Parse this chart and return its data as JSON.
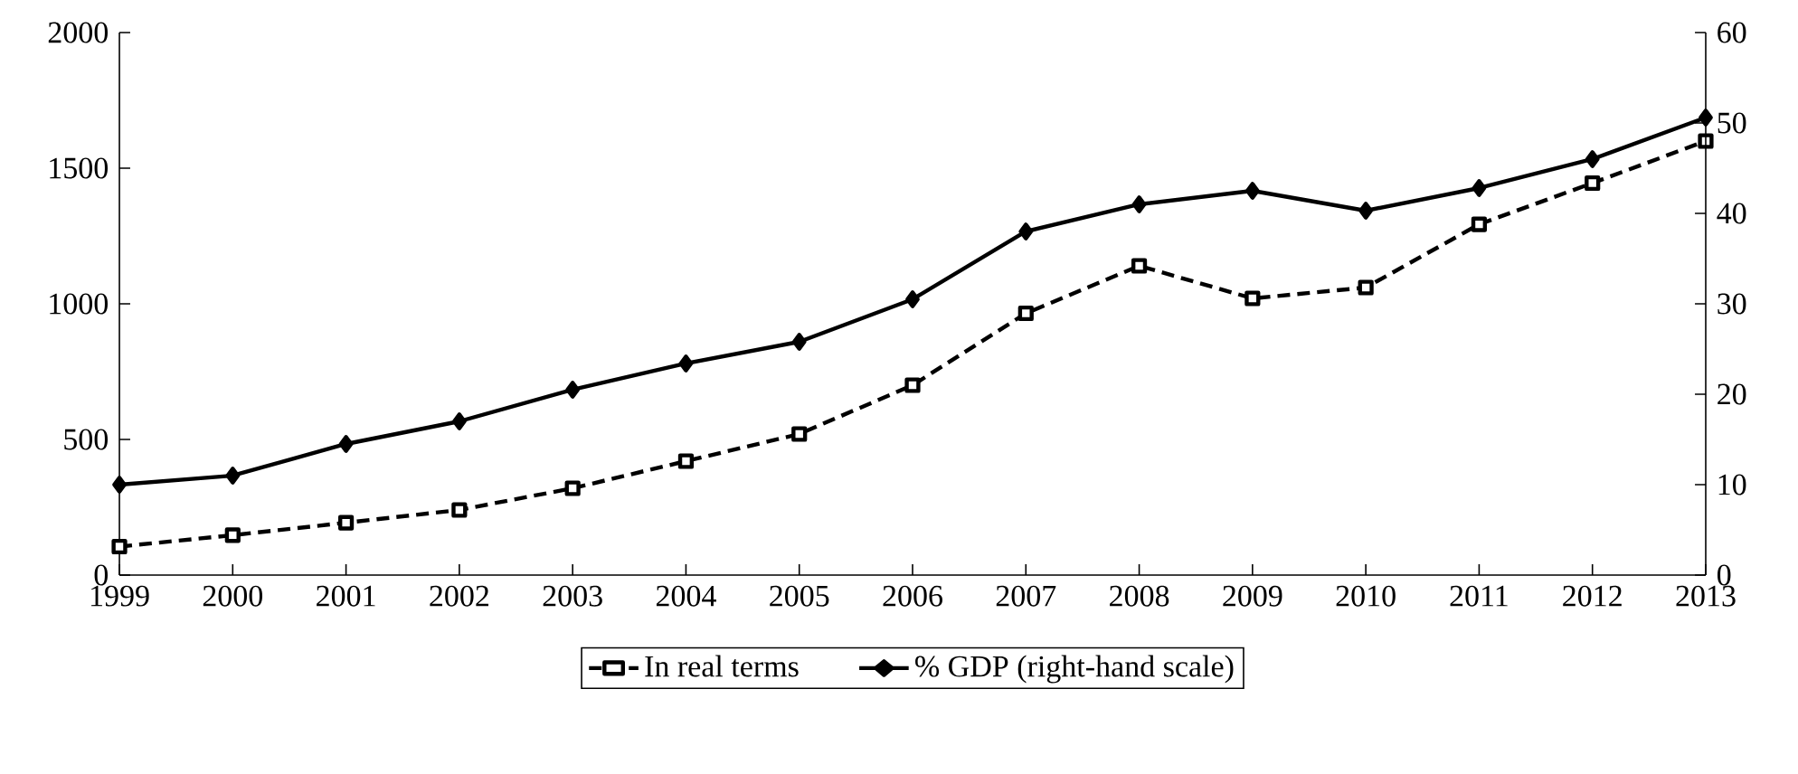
{
  "chart_data": {
    "type": "line",
    "x": [
      1999,
      2000,
      2001,
      2002,
      2003,
      2004,
      2005,
      2006,
      2007,
      2008,
      2009,
      2010,
      2011,
      2012,
      2013
    ],
    "series": [
      {
        "name": "In real terms",
        "color": "#000000",
        "marker": "square",
        "line_style": "dashed",
        "values": [
          105,
          147,
          193,
          240,
          320,
          420,
          520,
          700,
          965,
          1140,
          1020,
          1060,
          1293,
          1445,
          1600
        ]
      },
      {
        "name": "% GDP (right-hand scale)",
        "color": "#000000",
        "marker": "diamond",
        "line_style": "solid",
        "axis": "y2",
        "values": [
          10,
          11,
          14.5,
          17,
          20.5,
          23.4,
          25.8,
          30.5,
          38,
          41,
          42.5,
          40.3,
          42.8,
          46,
          50.6
        ]
      }
    ],
    "xlim": [
      1999,
      2013
    ],
    "xticks": [
      1999,
      2000,
      2001,
      2002,
      2003,
      2004,
      2005,
      2006,
      2007,
      2008,
      2009,
      2010,
      2011,
      2012,
      2013
    ],
    "ylim": [
      0,
      2000
    ],
    "yticks": [
      0,
      500,
      1000,
      1500,
      2000
    ],
    "y2lim": [
      0,
      60
    ],
    "y2ticks": [
      0,
      10,
      20,
      30,
      40,
      50,
      60
    ],
    "grid": false,
    "legend": "bottom"
  }
}
